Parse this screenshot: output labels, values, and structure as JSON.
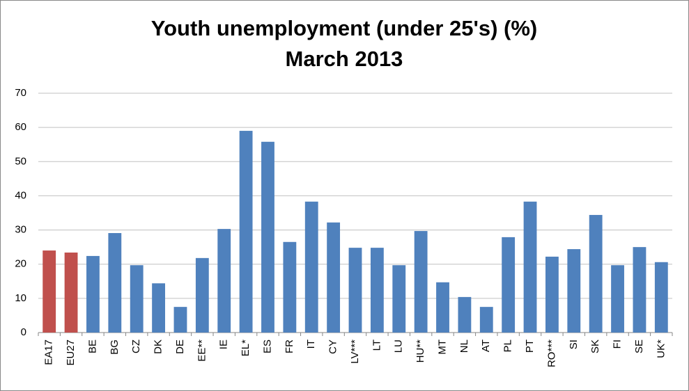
{
  "chart_data": {
    "type": "bar",
    "title": "Youth unemployment  (under 25's) (%)",
    "subtitle": "March 2013",
    "categories": [
      "EA17",
      "EU27",
      "BE",
      "BG",
      "CZ",
      "DK",
      "DE",
      "EE**",
      "IE",
      "EL*",
      "ES",
      "FR",
      "IT",
      "CY",
      "LV***",
      "LT",
      "LU",
      "HU**",
      "MT",
      "NL",
      "AT",
      "PL",
      "PT",
      "RO***",
      "SI",
      "SK",
      "FI",
      "SE",
      "UK*"
    ],
    "values": [
      24.0,
      23.4,
      22.4,
      29.1,
      19.7,
      14.4,
      7.5,
      21.8,
      30.3,
      59.0,
      55.8,
      26.5,
      38.3,
      32.2,
      24.8,
      24.8,
      19.7,
      29.7,
      14.7,
      10.4,
      7.5,
      27.9,
      38.3,
      22.2,
      24.4,
      34.4,
      19.7,
      25.0,
      20.6
    ],
    "colors": [
      "#c0504d",
      "#c0504d",
      "#4f81bd",
      "#4f81bd",
      "#4f81bd",
      "#4f81bd",
      "#4f81bd",
      "#4f81bd",
      "#4f81bd",
      "#4f81bd",
      "#4f81bd",
      "#4f81bd",
      "#4f81bd",
      "#4f81bd",
      "#4f81bd",
      "#4f81bd",
      "#4f81bd",
      "#4f81bd",
      "#4f81bd",
      "#4f81bd",
      "#4f81bd",
      "#4f81bd",
      "#4f81bd",
      "#4f81bd",
      "#4f81bd",
      "#4f81bd",
      "#4f81bd",
      "#4f81bd",
      "#4f81bd"
    ],
    "ylim": [
      0,
      70
    ],
    "yticks": [
      0,
      10,
      20,
      30,
      40,
      50,
      60,
      70
    ],
    "grid": true
  }
}
